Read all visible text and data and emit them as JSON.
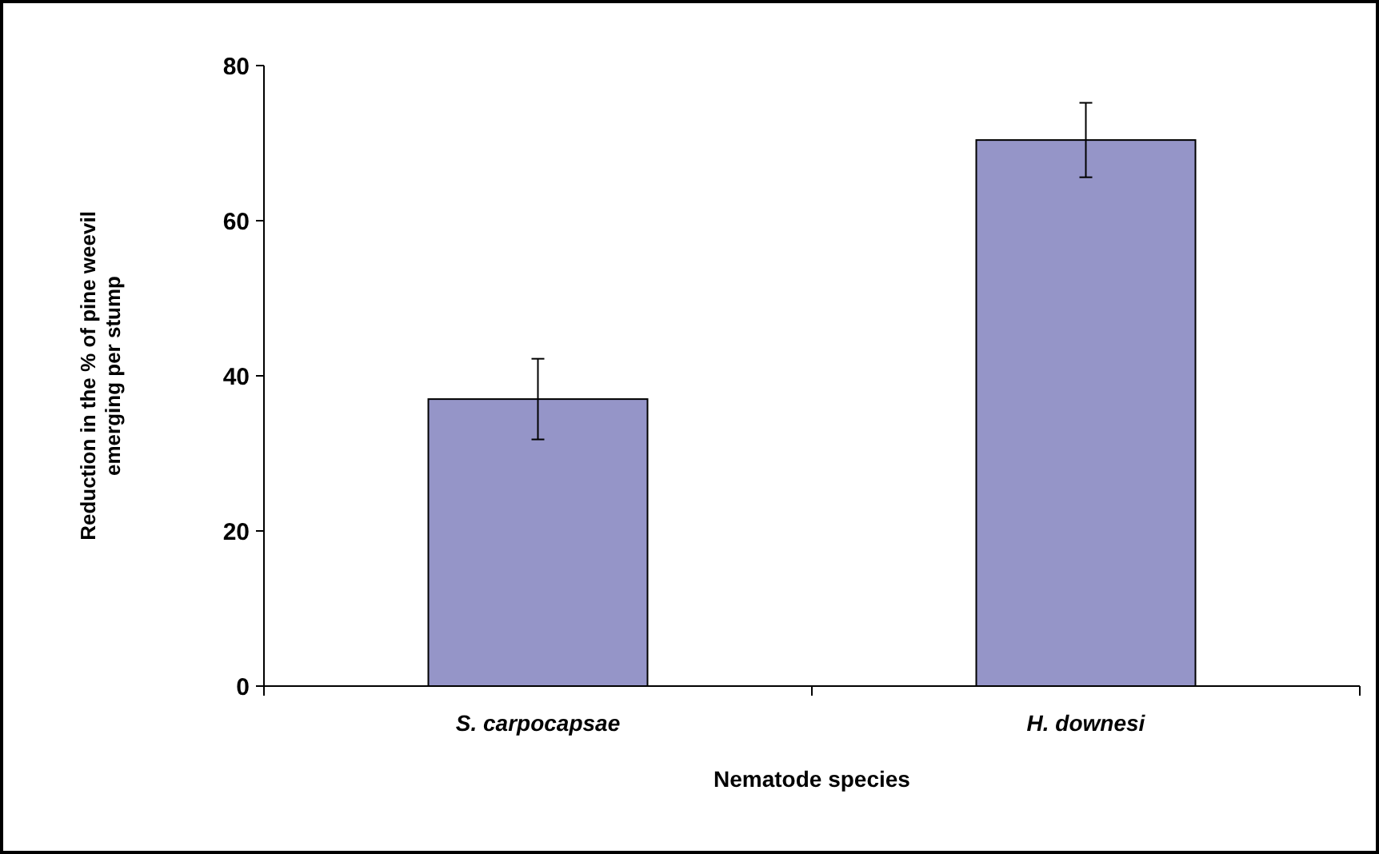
{
  "chart_data": {
    "type": "bar",
    "xlabel": "Nematode species",
    "ylabel": "Reduction in the % of pine weevil emerging per stump",
    "categories": [
      "S. carpocapsae",
      "H. downesi"
    ],
    "values": [
      37,
      70.4
    ],
    "errors": [
      5.2,
      4.8
    ],
    "color": "#9595c8",
    "ylim": [
      0,
      80
    ],
    "yticks": [
      0,
      20,
      40,
      60,
      80
    ],
    "grid": false
  }
}
